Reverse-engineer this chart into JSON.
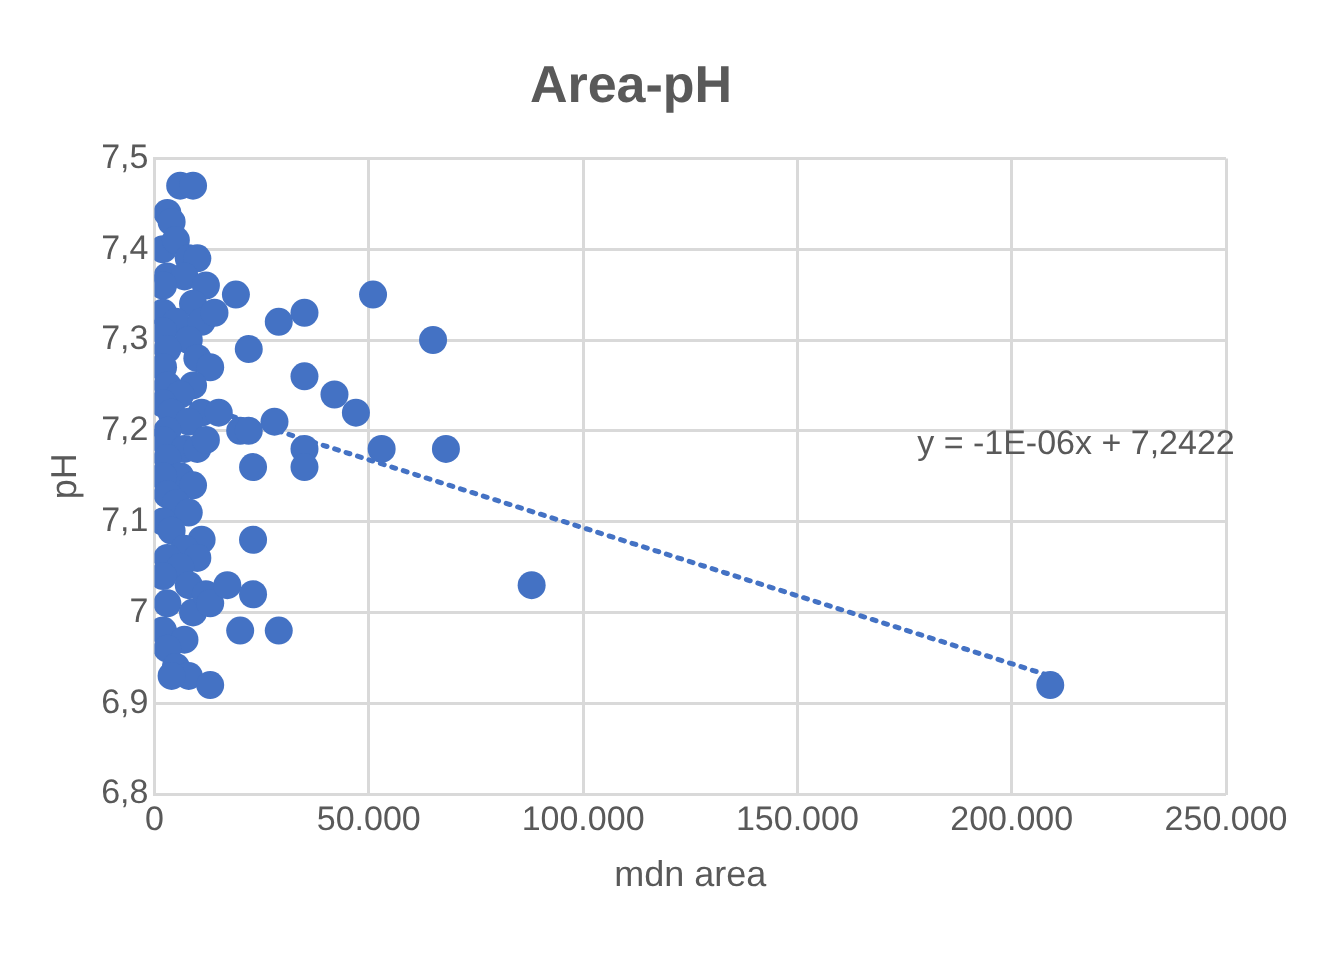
{
  "chart_data": {
    "type": "scatter",
    "title": "Area-pH",
    "xlabel": "mdn area",
    "ylabel": "pH",
    "xlim": [
      0,
      250000
    ],
    "xticks": [
      {
        "value": 0,
        "label": "0"
      },
      {
        "value": 50000,
        "label": "50.000"
      },
      {
        "value": 100000,
        "label": "100.000"
      },
      {
        "value": 150000,
        "label": "150.000"
      },
      {
        "value": 200000,
        "label": "200.000"
      },
      {
        "value": 250000,
        "label": "250.000"
      }
    ],
    "ylim": [
      6.8,
      7.5
    ],
    "yticks": [
      {
        "value": 6.8,
        "label": "6,8"
      },
      {
        "value": 6.9,
        "label": "6,9"
      },
      {
        "value": 7,
        "label": "7"
      },
      {
        "value": 7.1,
        "label": "7,1"
      },
      {
        "value": 7.2,
        "label": "7,2"
      },
      {
        "value": 7.3,
        "label": "7,3"
      },
      {
        "value": 7.4,
        "label": "7,4"
      },
      {
        "value": 7.5,
        "label": "7,5"
      }
    ],
    "grid": true,
    "legend": false,
    "marker": "circle",
    "annotations": [
      "y = -1E-06x + 7,2422"
    ],
    "series": [
      {
        "color": "#4472c4",
        "x": [
          6000,
          9000,
          3000,
          4000,
          2000,
          5000,
          8000,
          10000,
          3000,
          7000,
          2000,
          12000,
          9000,
          2000,
          5000,
          11000,
          14000,
          2000,
          8000,
          3000,
          10000,
          2000,
          13000,
          3000,
          9000,
          6000,
          2000,
          4000,
          11000,
          8000,
          3000,
          15000,
          2000,
          7000,
          10000,
          3000,
          12000,
          6000,
          2000,
          9000,
          3000,
          5000,
          8000,
          11000,
          2000,
          4000,
          7000,
          3000,
          10000,
          6000,
          2000,
          8000,
          3000,
          9000,
          2000,
          7000,
          12000,
          3000,
          5000,
          8000,
          4000,
          13000,
          19000,
          20000,
          17000,
          13000,
          22000,
          22000,
          23000,
          23000,
          23000,
          20000,
          28000,
          29000,
          29000,
          35000,
          35000,
          35000,
          35000,
          42000,
          47000,
          51000,
          53000,
          65000,
          68000,
          88000,
          209000
        ],
        "values": [
          7.47,
          7.47,
          7.44,
          7.43,
          7.4,
          7.41,
          7.39,
          7.39,
          7.37,
          7.37,
          7.36,
          7.36,
          7.34,
          7.33,
          7.32,
          7.32,
          7.33,
          7.31,
          7.3,
          7.29,
          7.28,
          7.27,
          7.27,
          7.25,
          7.25,
          7.24,
          7.23,
          7.22,
          7.22,
          7.21,
          7.2,
          7.22,
          7.19,
          7.18,
          7.18,
          7.17,
          7.19,
          7.15,
          7.15,
          7.14,
          7.13,
          7.12,
          7.11,
          7.08,
          7.1,
          7.09,
          7.07,
          7.06,
          7.06,
          7.05,
          7.04,
          7.03,
          7.01,
          7.0,
          6.98,
          6.97,
          7.02,
          6.96,
          6.94,
          6.93,
          6.93,
          7.01,
          7.35,
          7.2,
          7.03,
          6.92,
          7.29,
          7.2,
          7.16,
          7.08,
          7.02,
          6.98,
          7.21,
          7.32,
          6.98,
          7.33,
          7.26,
          7.18,
          7.16,
          7.24,
          7.22,
          7.35,
          7.18,
          7.3,
          7.18,
          7.03,
          6.92
        ]
      },
      {
        "type": "line",
        "color": "#4472c4",
        "line_style": "dotted",
        "marker": "none",
        "x": [
          2000,
          209000
        ],
        "values": [
          7.24,
          6.93
        ]
      }
    ]
  }
}
